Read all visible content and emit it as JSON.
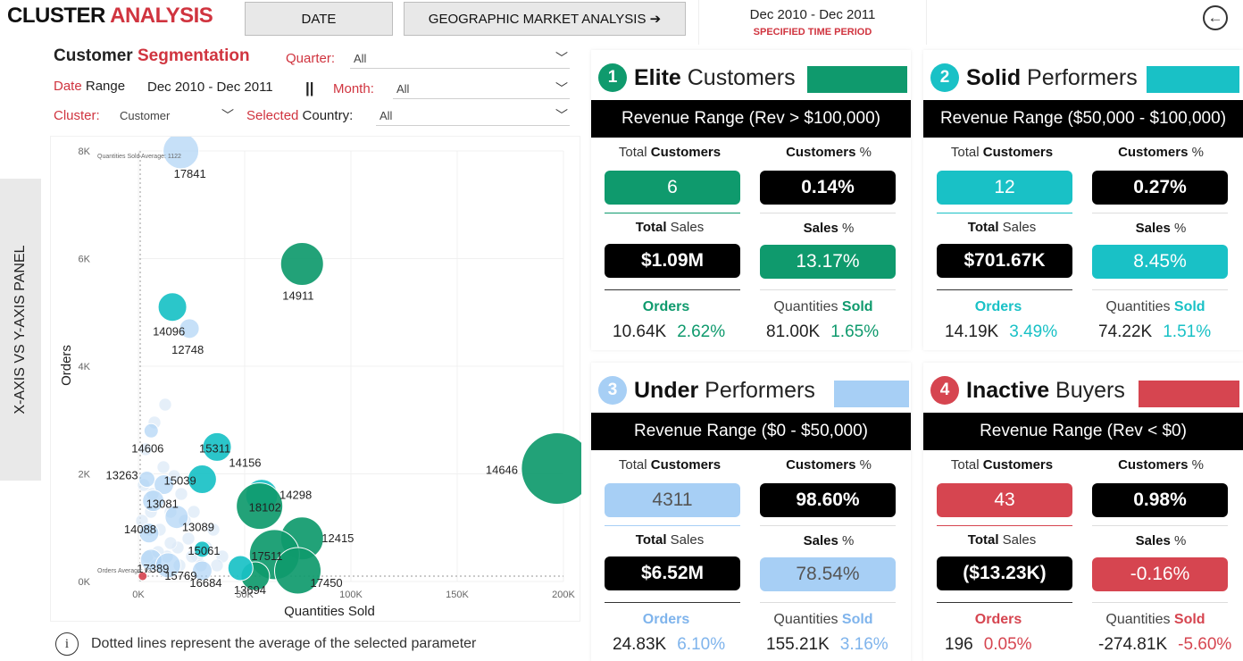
{
  "header": {
    "title_part1": "CLUSTER ",
    "title_part2": "ANALYSIS",
    "date_button": "DATE",
    "geo_button": "GEOGRAPHIC MARKET ANALYSIS ➔",
    "period_range": "Dec 2010 - Dec 2011",
    "period_label": "SPECIFIED TIME PERIOD",
    "back_icon": "arrow-left-circle-icon"
  },
  "filters": {
    "section_title_1": "Customer ",
    "section_title_2": "Segmentation",
    "quarter_label": "Quarter:",
    "quarter_value": "All",
    "date_range_label_1": "Date",
    "date_range_label_2": " Range",
    "date_range_value": "Dec 2010 - Dec 2011",
    "separator": "||",
    "month_label": "Month:",
    "month_value": "All",
    "cluster_label": "Cluster:",
    "cluster_value": "Customer",
    "country_label_1": "Selected",
    "country_label_2": " Country:",
    "country_value": "All"
  },
  "side_panel": {
    "label": "X-AXIS VS Y-AXIS PANEL"
  },
  "note": {
    "text": "Dotted lines represent the average of the selected parameter"
  },
  "colors": {
    "elite": "#0f9a6d",
    "solid": "#19c1c6",
    "under": "#a7cff5",
    "inactive": "#d64550",
    "accent_red": "#d0343f"
  },
  "chart_data": {
    "type": "scatter",
    "xlabel": "Quantities Sold",
    "ylabel": "Orders",
    "xlim": [
      0,
      200000
    ],
    "ylim": [
      0,
      8000
    ],
    "x_ticks": [
      "0K",
      "50K",
      "100K",
      "150K",
      "200K"
    ],
    "y_ticks": [
      "0K",
      "2K",
      "4K",
      "6K",
      "8K"
    ],
    "avg_labels": {
      "x": "Quantities Sold Average: 1122",
      "y": "Orders Average: 93"
    },
    "points": [
      {
        "label": "17841",
        "x": 20000,
        "y": 8000,
        "size": 20,
        "cluster": "under"
      },
      {
        "label": "14911",
        "x": 77000,
        "y": 5900,
        "size": 24,
        "cluster": "elite"
      },
      {
        "label": "14096",
        "x": 16000,
        "y": 5100,
        "size": 16,
        "cluster": "solid"
      },
      {
        "label": "12748",
        "x": 24000,
        "y": 4700,
        "size": 11,
        "cluster": "under"
      },
      {
        "label": "14646",
        "x": 197000,
        "y": 2100,
        "size": 40,
        "cluster": "elite"
      },
      {
        "label": "14606",
        "x": 6000,
        "y": 2800,
        "size": 8,
        "cluster": "under"
      },
      {
        "label": "15311",
        "x": 37000,
        "y": 2500,
        "size": 16,
        "cluster": "solid"
      },
      {
        "label": "13263",
        "x": 4000,
        "y": 1900,
        "size": 9,
        "cluster": "under"
      },
      {
        "label": "15039",
        "x": 12000,
        "y": 1800,
        "size": 11,
        "cluster": "under"
      },
      {
        "label": "14156",
        "x": 30000,
        "y": 1900,
        "size": 16,
        "cluster": "solid"
      },
      {
        "label": "14298",
        "x": 58000,
        "y": 1600,
        "size": 18,
        "cluster": "solid"
      },
      {
        "label": "13081",
        "x": 7000,
        "y": 1500,
        "size": 12,
        "cluster": "under"
      },
      {
        "label": "13089",
        "x": 18000,
        "y": 1200,
        "size": 13,
        "cluster": "under"
      },
      {
        "label": "18102",
        "x": 57000,
        "y": 1400,
        "size": 26,
        "cluster": "elite"
      },
      {
        "label": "14088",
        "x": 5000,
        "y": 900,
        "size": 11,
        "cluster": "under"
      },
      {
        "label": "12415",
        "x": 77000,
        "y": 800,
        "size": 24,
        "cluster": "elite"
      },
      {
        "label": "15061",
        "x": 30000,
        "y": 600,
        "size": 9,
        "cluster": "solid"
      },
      {
        "label": "17511",
        "x": 64000,
        "y": 500,
        "size": 28,
        "cluster": "elite"
      },
      {
        "label": "17389",
        "x": 6000,
        "y": 400,
        "size": 12,
        "cluster": "under"
      },
      {
        "label": "15769",
        "x": 14000,
        "y": 300,
        "size": 14,
        "cluster": "under"
      },
      {
        "label": "16684",
        "x": 30000,
        "y": 200,
        "size": 11,
        "cluster": "under"
      },
      {
        "label": "17450",
        "x": 75000,
        "y": 200,
        "size": 26,
        "cluster": "elite"
      },
      {
        "label": "13694",
        "x": 55000,
        "y": 100,
        "size": 16,
        "cluster": "elite"
      },
      {
        "label": "",
        "x": 48000,
        "y": 250,
        "size": 14,
        "cluster": "solid"
      },
      {
        "label": "",
        "x": 2000,
        "y": 100,
        "size": 5,
        "cluster": "inactive"
      }
    ]
  },
  "cards": [
    {
      "id": "elite",
      "number": "1",
      "name_bold": "Elite",
      "name_rest": " Customers",
      "color": "#0f9a6d",
      "revenue_range": "Revenue Range (Rev > $100,000)",
      "total_customers_label_1": "Total ",
      "total_customers_label_2": "Customers",
      "customers_pct_label_1": "Customers",
      "customers_pct_label_2": " %",
      "total_customers": "6",
      "customers_pct": "0.14%",
      "total_sales_label_1": "Total",
      "total_sales_label_2": " Sales",
      "sales_pct_label_1": "Sales",
      "sales_pct_label_2": " %",
      "total_sales": "$1.09M",
      "sales_pct": "13.17%",
      "orders_label": "Orders",
      "qty_label_1": "Quantities ",
      "qty_label_2": "Sold",
      "orders": "10.64K",
      "orders_pct": "2.62%",
      "qty": "81.00K",
      "qty_pct": "1.65%"
    },
    {
      "id": "solid",
      "number": "2",
      "name_bold": "Solid",
      "name_rest": " Performers",
      "color": "#19c1c6",
      "revenue_range": "Revenue Range ($50,000 - $100,000)",
      "total_customers_label_1": "Total ",
      "total_customers_label_2": "Customers",
      "customers_pct_label_1": "Customers",
      "customers_pct_label_2": " %",
      "total_customers": "12",
      "customers_pct": "0.27%",
      "total_sales_label_1": "Total",
      "total_sales_label_2": " Sales",
      "sales_pct_label_1": "Sales",
      "sales_pct_label_2": " %",
      "total_sales": "$701.67K",
      "sales_pct": "8.45%",
      "orders_label": "Orders",
      "qty_label_1": "Quantities ",
      "qty_label_2": "Sold",
      "orders": "14.19K",
      "orders_pct": "3.49%",
      "qty": "74.22K",
      "qty_pct": "1.51%"
    },
    {
      "id": "under",
      "number": "3",
      "name_bold": "Under",
      "name_rest": " Performers",
      "color": "#a7cff5",
      "revenue_range": "Revenue Range ($0 - $50,000)",
      "total_customers_label_1": "Total ",
      "total_customers_label_2": "Customers",
      "customers_pct_label_1": "Customers",
      "customers_pct_label_2": " %",
      "total_customers": "4311",
      "customers_pct": "98.60%",
      "total_sales_label_1": "Total",
      "total_sales_label_2": " Sales",
      "sales_pct_label_1": "Sales",
      "sales_pct_label_2": " %",
      "total_sales": "$6.52M",
      "sales_pct": "78.54%",
      "orders_label": "Orders",
      "qty_label_1": "Quantities ",
      "qty_label_2": "Sold",
      "orders": "24.83K",
      "orders_pct": "6.10%",
      "qty": "155.21K",
      "qty_pct": "3.16%"
    },
    {
      "id": "inactive",
      "number": "4",
      "name_bold": "Inactive",
      "name_rest": " Buyers",
      "color": "#d64550",
      "revenue_range": "Revenue Range (Rev < $0)",
      "total_customers_label_1": "Total ",
      "total_customers_label_2": "Customers",
      "customers_pct_label_1": "Customers",
      "customers_pct_label_2": " %",
      "total_customers": "43",
      "customers_pct": "0.98%",
      "total_sales_label_1": "Total",
      "total_sales_label_2": " Sales",
      "sales_pct_label_1": "Sales",
      "sales_pct_label_2": " %",
      "total_sales": "($13.23K)",
      "sales_pct": "-0.16%",
      "orders_label": "Orders",
      "qty_label_1": "Quantities ",
      "qty_label_2": "Sold",
      "orders": "196",
      "orders_pct": "0.05%",
      "qty": "-274.81K",
      "qty_pct": "-5.60%"
    }
  ]
}
